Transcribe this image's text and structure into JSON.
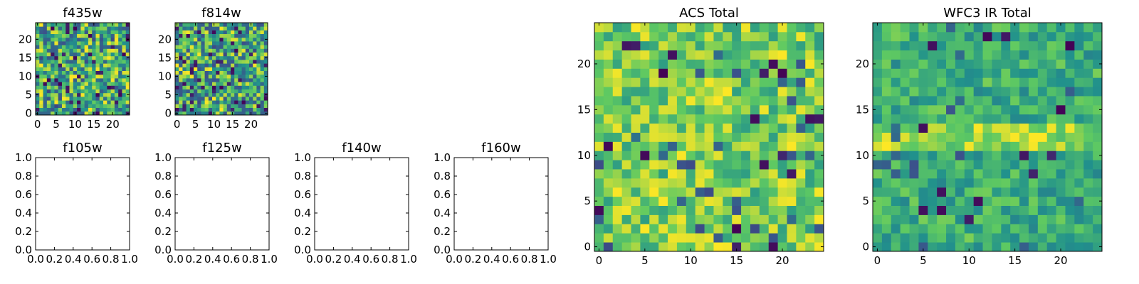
{
  "colormap": [
    "#440154",
    "#3b528b",
    "#21918c",
    "#5ec962",
    "#fde725"
  ],
  "chart_data": [
    {
      "type": "heatmap",
      "title": "f435w",
      "grid_size": 25,
      "xlim": [
        -0.5,
        24.5
      ],
      "ylim": [
        -0.5,
        24.5
      ],
      "xticks": [
        "0",
        "5",
        "10",
        "15",
        "20"
      ],
      "yticks": [
        "0",
        "5",
        "10",
        "15",
        "20"
      ],
      "seed": 11,
      "value_range": [
        0.25,
        1.0
      ],
      "low_fraction": 0.06
    },
    {
      "type": "heatmap",
      "title": "f814w",
      "grid_size": 25,
      "xlim": [
        -0.5,
        24.5
      ],
      "ylim": [
        -0.5,
        24.5
      ],
      "xticks": [
        "0",
        "5",
        "10",
        "15",
        "20"
      ],
      "yticks": [
        "0",
        "5",
        "10",
        "15",
        "20"
      ],
      "seed": 23,
      "value_range": [
        0.25,
        1.0
      ],
      "low_fraction": 0.07
    },
    {
      "type": "line",
      "title": "f105w",
      "xlim": [
        0.0,
        1.0
      ],
      "ylim": [
        0.0,
        1.0
      ],
      "xticks": [
        "0.0",
        "0.2",
        "0.4",
        "0.6",
        "0.8",
        "1.0"
      ],
      "yticks": [
        "0.0",
        "0.2",
        "0.4",
        "0.6",
        "0.8",
        "1.0"
      ],
      "series": []
    },
    {
      "type": "line",
      "title": "f125w",
      "xlim": [
        0.0,
        1.0
      ],
      "ylim": [
        0.0,
        1.0
      ],
      "xticks": [
        "0.0",
        "0.2",
        "0.4",
        "0.6",
        "0.8",
        "1.0"
      ],
      "yticks": [
        "0.0",
        "0.2",
        "0.4",
        "0.6",
        "0.8",
        "1.0"
      ],
      "series": []
    },
    {
      "type": "line",
      "title": "f140w",
      "xlim": [
        0.0,
        1.0
      ],
      "ylim": [
        0.0,
        1.0
      ],
      "xticks": [
        "0.0",
        "0.2",
        "0.4",
        "0.6",
        "0.8",
        "1.0"
      ],
      "yticks": [
        "0.0",
        "0.2",
        "0.4",
        "0.6",
        "0.8",
        "1.0"
      ],
      "series": []
    },
    {
      "type": "line",
      "title": "f160w",
      "xlim": [
        0.0,
        1.0
      ],
      "ylim": [
        0.0,
        1.0
      ],
      "xticks": [
        "0.0",
        "0.2",
        "0.4",
        "0.6",
        "0.8",
        "1.0"
      ],
      "yticks": [
        "0.0",
        "0.2",
        "0.4",
        "0.6",
        "0.8",
        "1.0"
      ],
      "series": []
    },
    {
      "type": "heatmap",
      "title": "ACS Total",
      "grid_size": 25,
      "xlim": [
        -0.5,
        24.5
      ],
      "ylim": [
        -0.5,
        24.5
      ],
      "xticks": [
        "0",
        "5",
        "10",
        "15",
        "20"
      ],
      "yticks": [
        "0",
        "5",
        "10",
        "15",
        "20"
      ],
      "seed": 37,
      "value_range": [
        0.55,
        1.0
      ],
      "low_fraction": 0.035
    },
    {
      "type": "heatmap",
      "title": "WFC3 IR Total",
      "grid_size": 25,
      "xlim": [
        -0.5,
        24.5
      ],
      "ylim": [
        -0.5,
        24.5
      ],
      "xticks": [
        "0",
        "5",
        "10",
        "15",
        "20"
      ],
      "yticks": [
        "0",
        "5",
        "10",
        "15",
        "20"
      ],
      "seed": 53,
      "value_range": [
        0.45,
        0.8
      ],
      "low_fraction": 0.03,
      "bright_rows": [
        11,
        12,
        13
      ]
    }
  ]
}
